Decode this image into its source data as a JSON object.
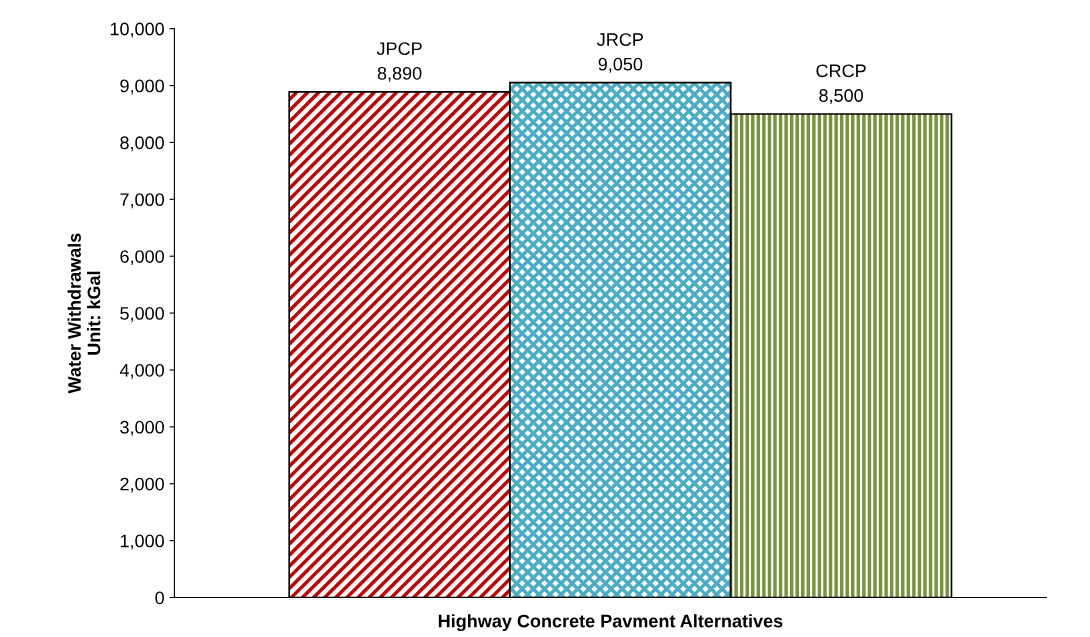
{
  "chart_data": {
    "type": "bar",
    "xlabel": "Highway Concrete Pavment Alternatives",
    "ylabel": "Water Withdrawals\nUnit: kGal",
    "categories": [
      "JPCP",
      "JRCP",
      "CRCP"
    ],
    "values": [
      8890,
      9050,
      8500
    ],
    "value_labels": [
      "8,890",
      "9,050",
      "8,500"
    ],
    "colors": [
      "#c00000",
      "#4bacc6",
      "#77933c"
    ],
    "ylim": [
      0,
      10000
    ],
    "yticks": [
      0,
      {
        "value": 1000,
        "label": "1,000"
      },
      {
        "value": 2000,
        "label": "2,000"
      },
      {
        "value": 3000,
        "label": "3,000"
      },
      {
        "value": 4000,
        "label": "4,000"
      },
      {
        "value": 5000,
        "label": "5,000"
      },
      {
        "value": 6000,
        "label": "6,000"
      },
      {
        "value": 7000,
        "label": "7,000"
      },
      {
        "value": 8000,
        "label": "8,000"
      },
      {
        "value": 9000,
        "label": "9,000"
      },
      {
        "value": 10000,
        "label": "10,000"
      }
    ],
    "grid": false,
    "legend": false
  }
}
